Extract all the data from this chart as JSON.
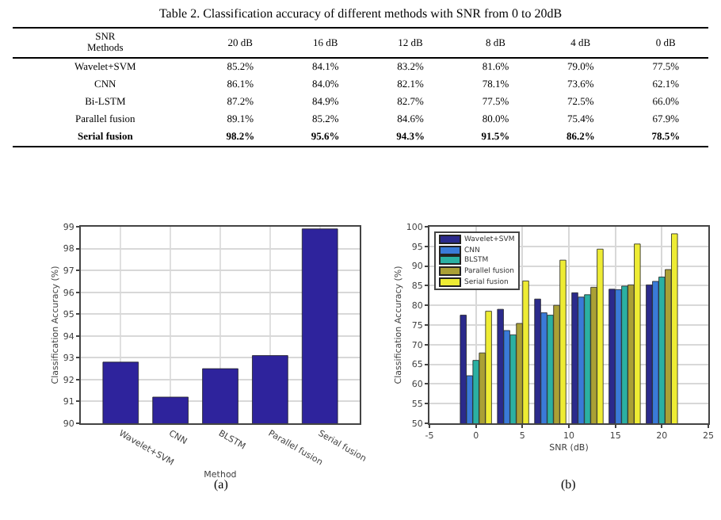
{
  "chart_data": [
    {
      "type": "heatmap",
      "title": "Table 2. Classification accuracy of different methods with SNR from 0 to 20dB",
      "xlabel": "SNR",
      "ylabel": "Methods",
      "categories": [
        "20 dB",
        "16 dB",
        "12 dB",
        "8 dB",
        "4 dB",
        "0 dB"
      ],
      "y_categories": [
        "Wavelet+SVM",
        "CNN",
        "Bi-LSTM",
        "Parallel fusion",
        "Serial fusion"
      ],
      "cells": [
        [
          85.2,
          84.1,
          83.2,
          81.6,
          79.0,
          77.5
        ],
        [
          86.1,
          84.0,
          82.1,
          78.1,
          73.6,
          62.1
        ],
        [
          87.2,
          84.9,
          82.7,
          77.5,
          72.5,
          66.0
        ],
        [
          89.1,
          85.2,
          84.6,
          80.0,
          75.4,
          67.9
        ],
        [
          98.2,
          95.6,
          94.3,
          91.5,
          86.2,
          78.5
        ]
      ],
      "cell_labels": [
        [
          "85.2%",
          "84.1%",
          "83.2%",
          "81.6%",
          "79.0%",
          "77.5%"
        ],
        [
          "86.1%",
          "84.0%",
          "82.1%",
          "78.1%",
          "73.6%",
          "62.1%"
        ],
        [
          "87.2%",
          "84.9%",
          "82.7%",
          "77.5%",
          "72.5%",
          "66.0%"
        ],
        [
          "89.1%",
          "85.2%",
          "84.6%",
          "80.0%",
          "75.4%",
          "67.9%"
        ],
        [
          "98.2%",
          "95.6%",
          "94.3%",
          "91.5%",
          "86.2%",
          "78.5%"
        ]
      ]
    },
    {
      "type": "bar",
      "categories": [
        "Wavelet+SVM",
        "CNN",
        "BLSTM",
        "Parallel fusion",
        "Serial fusion"
      ],
      "values": [
        92.8,
        91.2,
        92.5,
        93.1,
        98.9
      ],
      "color": "#2e239c",
      "xlabel": "Method",
      "ylabel": "Classification Accuracy (%)",
      "ylim": [
        90,
        99
      ],
      "yticks": [
        90,
        91,
        92,
        93,
        94,
        95,
        96,
        97,
        98,
        99
      ],
      "grid": true,
      "annotations": [
        "(a)"
      ]
    },
    {
      "type": "bar",
      "x": [
        0,
        4,
        8,
        12,
        16,
        20
      ],
      "xlabel": "SNR (dB)",
      "ylabel": "Classification Accuracy (%)",
      "xlim": [
        -5,
        25
      ],
      "xticks": [
        -5,
        0,
        5,
        10,
        15,
        20,
        25
      ],
      "ylim": [
        50,
        100
      ],
      "yticks": [
        50,
        55,
        60,
        65,
        70,
        75,
        80,
        85,
        90,
        95,
        100
      ],
      "grid": true,
      "legend": "top left",
      "annotations": [
        "(b)"
      ],
      "series": [
        {
          "name": "Wavelet+SVM",
          "color": "#2b2a8c",
          "values": [
            77.5,
            79.0,
            81.6,
            83.2,
            84.1,
            85.2
          ]
        },
        {
          "name": "CNN",
          "color": "#3a7ad8",
          "values": [
            62.1,
            73.6,
            78.1,
            82.1,
            84.0,
            86.1
          ]
        },
        {
          "name": "BLSTM",
          "color": "#2bb0a2",
          "values": [
            66.0,
            72.5,
            77.5,
            82.7,
            84.9,
            87.2
          ]
        },
        {
          "name": "Parallel fusion",
          "color": "#aaa035",
          "values": [
            67.9,
            75.4,
            80.0,
            84.6,
            85.2,
            89.1
          ]
        },
        {
          "name": "Serial fusion",
          "color": "#eeec34",
          "values": [
            78.5,
            86.2,
            91.5,
            94.3,
            95.6,
            98.2
          ]
        }
      ]
    }
  ]
}
